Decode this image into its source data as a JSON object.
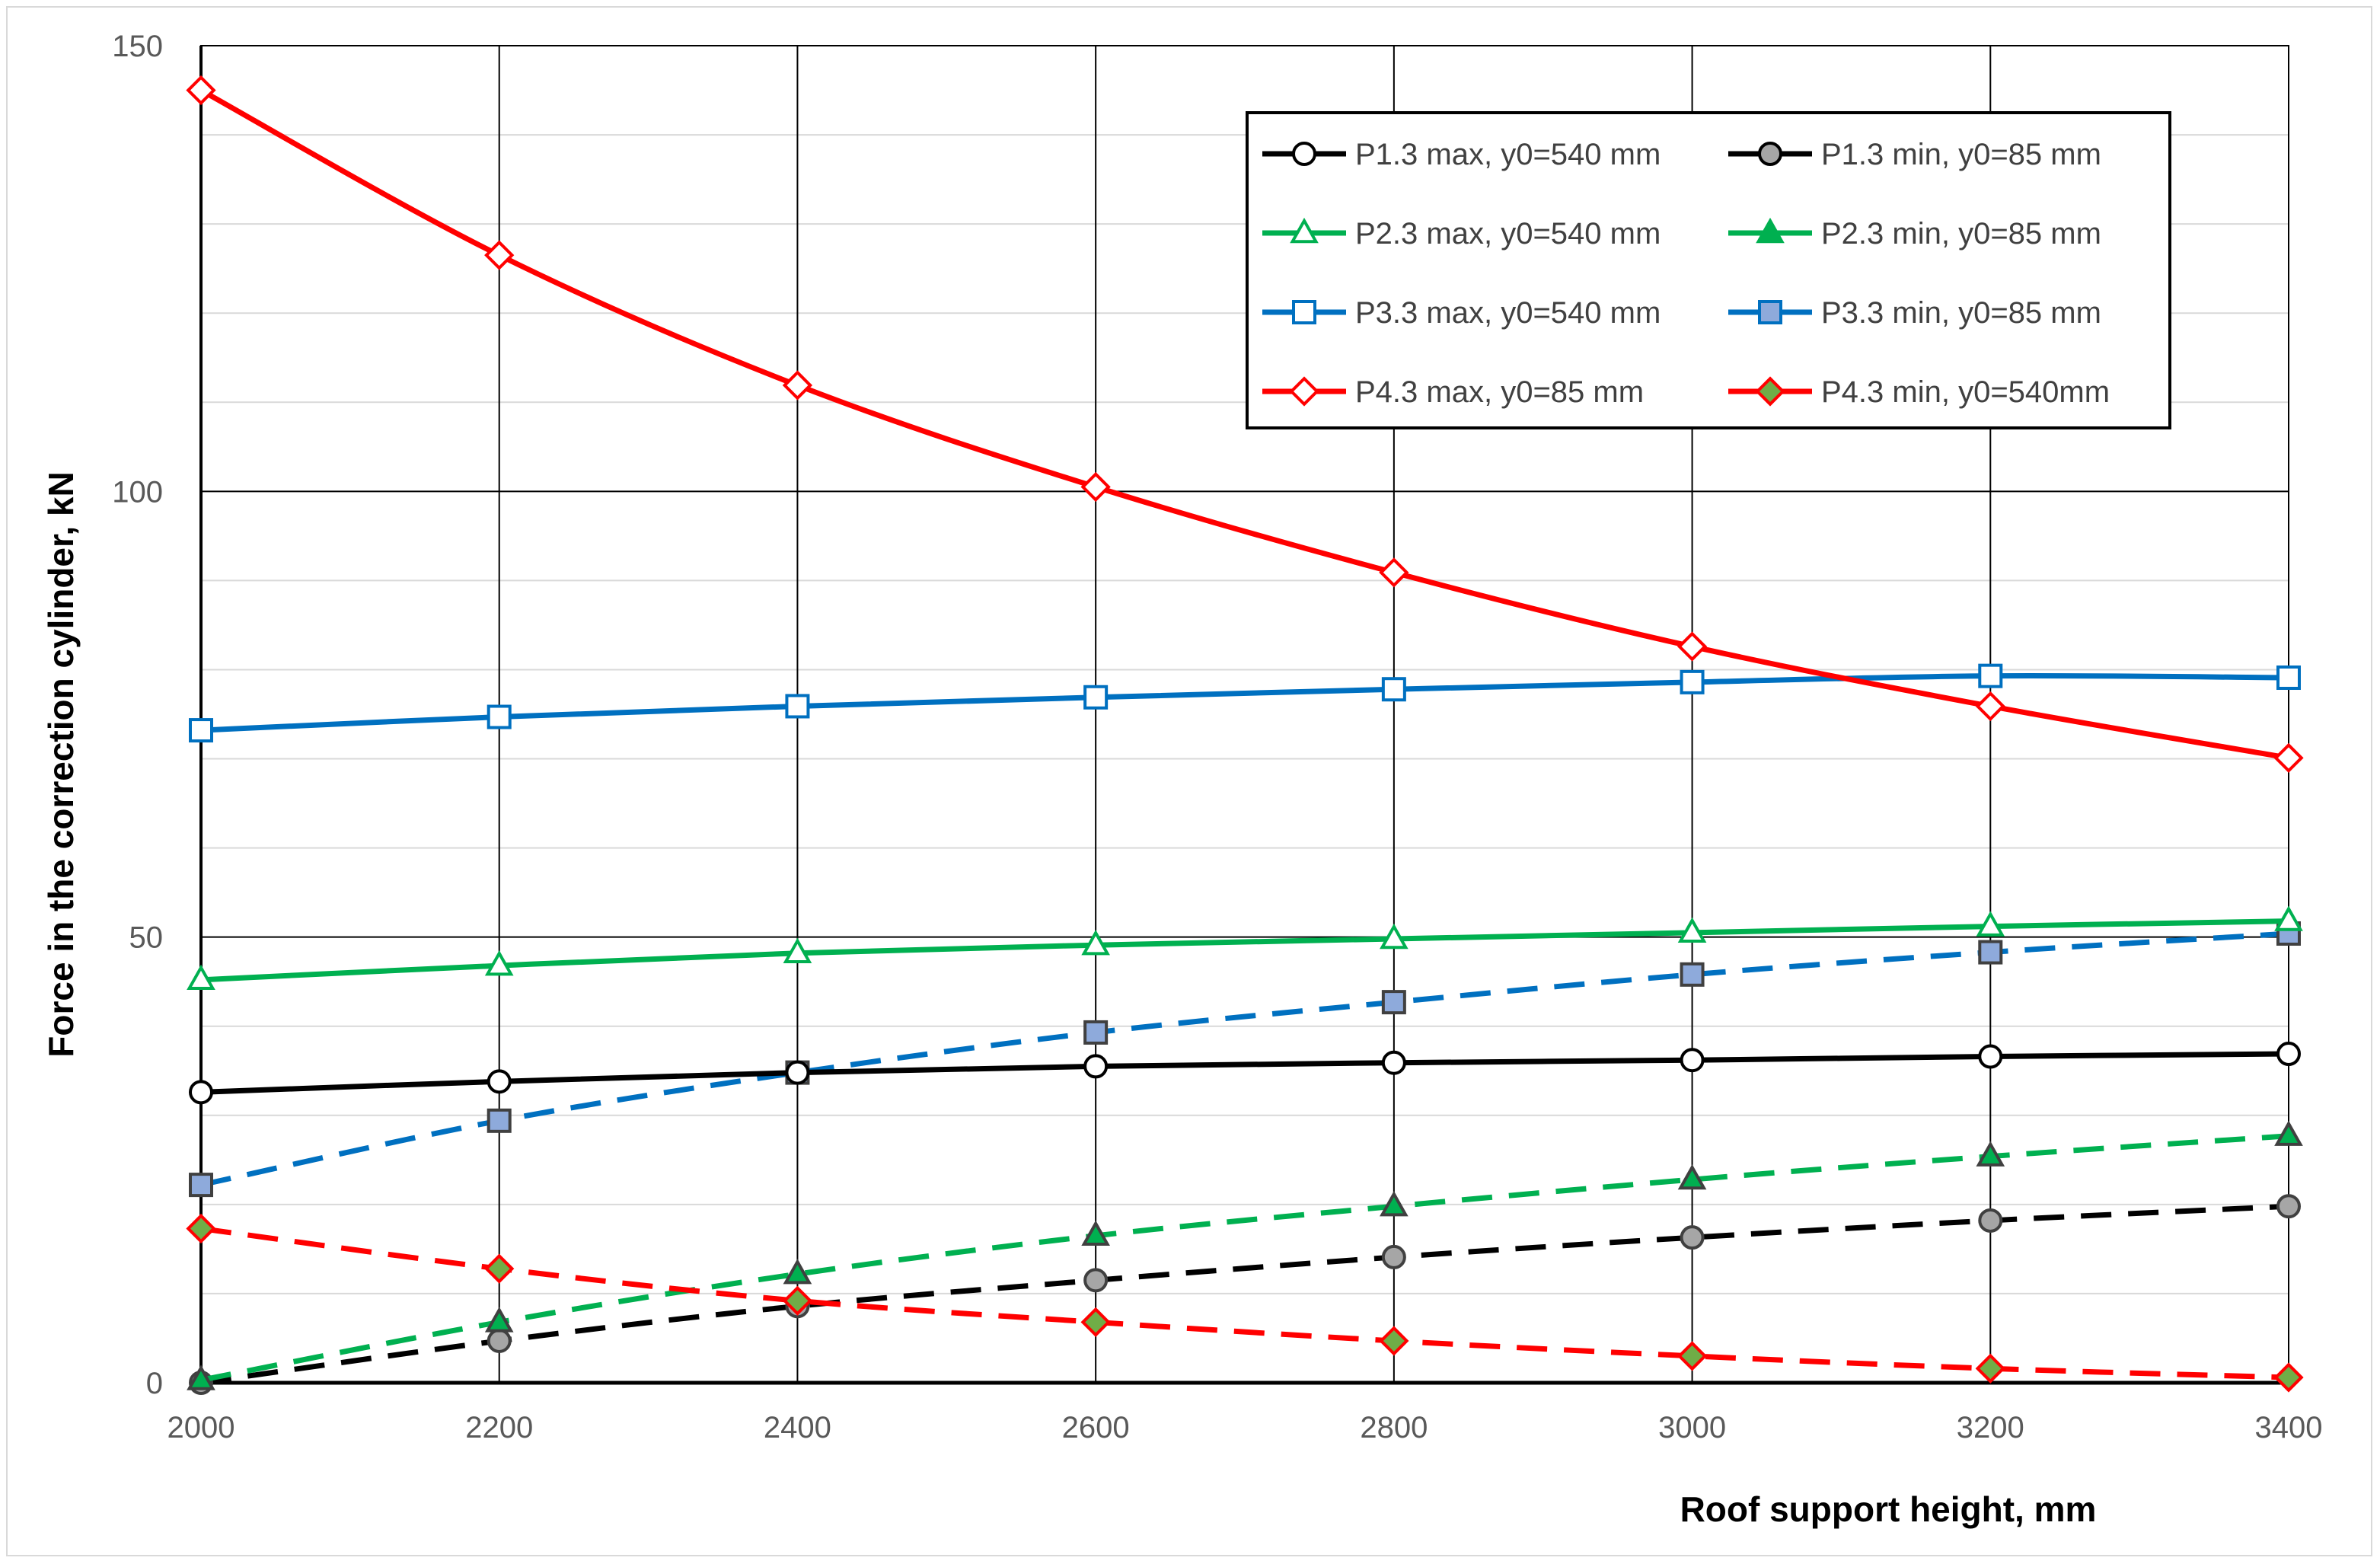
{
  "chart_data": {
    "type": "line",
    "title": "",
    "xlabel": "Roof support height, mm",
    "ylabel": "Force in the correction cylinder, kN",
    "xlim": [
      2000,
      3400
    ],
    "ylim": [
      0,
      150
    ],
    "x": [
      2000,
      2200,
      2400,
      2600,
      2800,
      3000,
      3200,
      3400
    ],
    "x_ticks": [
      "2000",
      "2200",
      "2400",
      "2600",
      "2800",
      "3000",
      "3200",
      "3400"
    ],
    "y_ticks": [
      "0",
      "50",
      "100",
      "150"
    ],
    "y_tick_values": [
      0,
      50,
      100,
      150
    ],
    "minor_y_step": 10,
    "grid": true,
    "legend_position": "top-right",
    "series": [
      {
        "name": "P1.3 max, y0=540 mm",
        "color": "#000000",
        "dash": "solid",
        "marker": "circle",
        "marker_fill": "#ffffff",
        "values": [
          32.6,
          33.8,
          34.8,
          35.5,
          35.9,
          36.2,
          36.6,
          36.9
        ]
      },
      {
        "name": "P1.3 min, y0=85 mm",
        "color": "#000000",
        "dash": "dashed",
        "marker": "circle",
        "marker_fill": "#a6a6a6",
        "values": [
          0,
          4.7,
          8.6,
          11.5,
          14.1,
          16.3,
          18.2,
          19.8
        ]
      },
      {
        "name": "P2.3 max, y0=540 mm",
        "color": "#00b050",
        "dash": "solid",
        "marker": "triangle",
        "marker_fill": "#ffffff",
        "values": [
          45.2,
          46.8,
          48.2,
          49.1,
          49.8,
          50.5,
          51.2,
          51.8
        ]
      },
      {
        "name": "P2.3 min, y0=85 mm",
        "color": "#00b050",
        "dash": "dashed",
        "marker": "triangle",
        "marker_fill": "#00b050",
        "values": [
          0.3,
          6.8,
          12.2,
          16.5,
          19.8,
          22.8,
          25.4,
          27.7
        ]
      },
      {
        "name": "P3.3 max, y0=540 mm",
        "color": "#0070c0",
        "dash": "solid",
        "marker": "square",
        "marker_fill": "#ffffff",
        "values": [
          73.2,
          74.7,
          75.9,
          76.9,
          77.8,
          78.6,
          79.3,
          79.1
        ]
      },
      {
        "name": "P3.3 min, y0=85 mm",
        "color": "#0070c0",
        "dash": "dashed",
        "marker": "square",
        "marker_fill": "#8eaadb",
        "values": [
          22.2,
          29.4,
          34.8,
          39.3,
          42.7,
          45.8,
          48.3,
          50.4
        ]
      },
      {
        "name": "P4.3 max, y0=85 mm",
        "color": "#ff0000",
        "dash": "solid",
        "marker": "diamond",
        "marker_fill": "#ffffff",
        "values": [
          145,
          126.5,
          111.9,
          100.5,
          90.9,
          82.6,
          75.9,
          70.1
        ]
      },
      {
        "name": "P4.3 min, y0=540mm",
        "color": "#ff0000",
        "dash": "dashed",
        "marker": "diamond",
        "marker_fill": "#70ad47",
        "values": [
          17.3,
          12.8,
          9.2,
          6.8,
          4.7,
          3.0,
          1.6,
          0.6
        ]
      }
    ]
  }
}
